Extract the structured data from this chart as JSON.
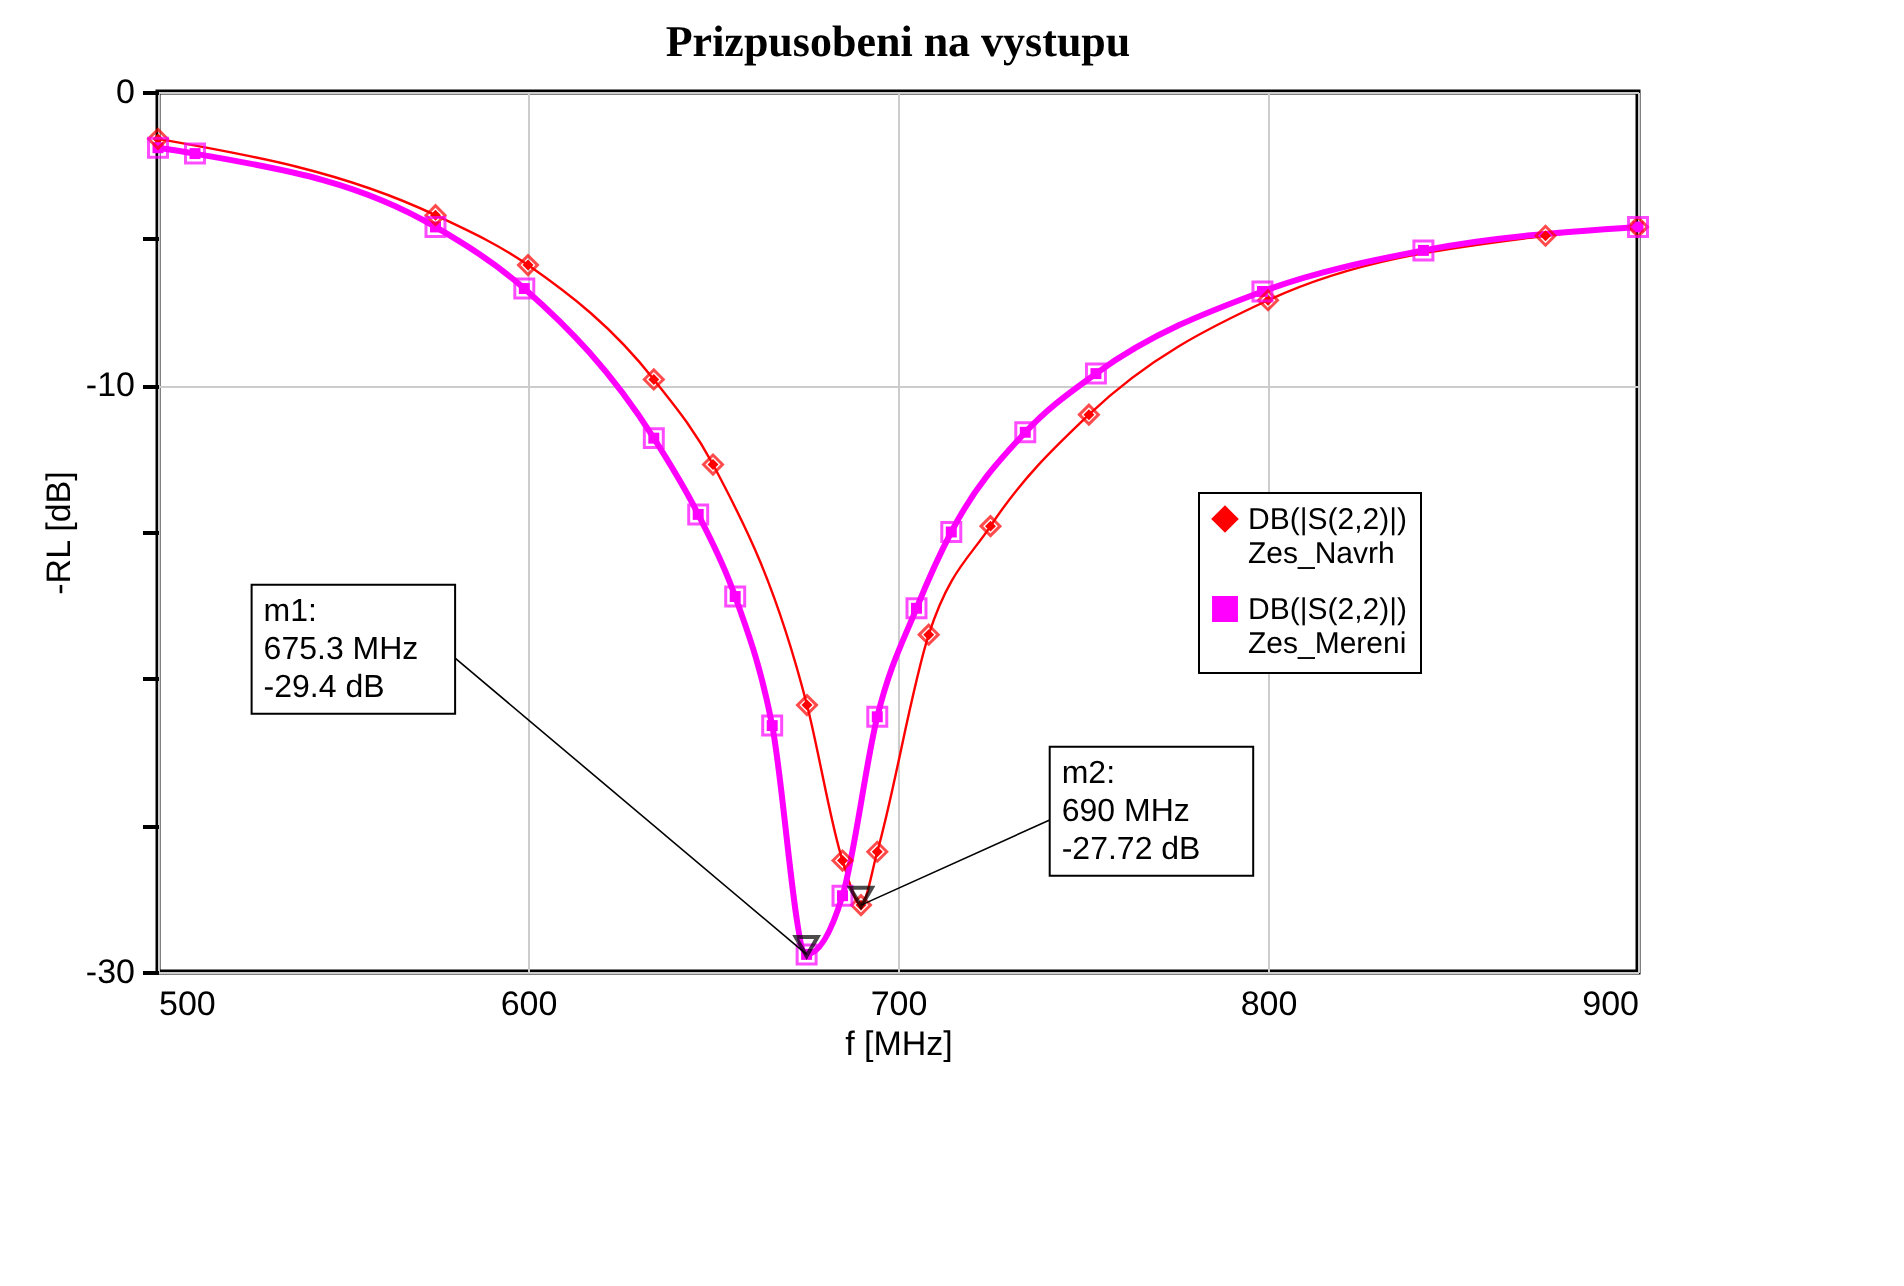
{
  "chart_data": {
    "type": "line",
    "title": "Prizpusobeni na vystupu",
    "xlabel": "f [MHz]",
    "ylabel": "-RL [dB]",
    "series": [
      {
        "name": "DB(|S(2,2)|)\nZes_Navrh",
        "color": "#ff0000",
        "marker": "diamond",
        "x": [
          500,
          575,
          600,
          634,
          650,
          675.4,
          685,
          690,
          694.4,
          708.3,
          725,
          751.6,
          800,
          875,
          900
        ],
        "values": [
          -1.6,
          -4.2,
          -5.9,
          -9.8,
          -12.7,
          -20.9,
          -26.2,
          -27.72,
          -25.9,
          -18.5,
          -14.8,
          -11.0,
          -7.1,
          -4.9,
          -4.6
        ]
      },
      {
        "name": "DB(|S(2,2)|)\nZes_Mereni",
        "color": "#ff00ff",
        "marker": "square",
        "x": [
          500,
          510,
          575,
          599,
          634,
          646,
          656,
          666,
          675.3,
          685,
          694.4,
          705,
          714.4,
          734.4,
          753.5,
          798.5,
          842,
          900
        ],
        "values": [
          -1.9,
          -2.1,
          -4.6,
          -6.7,
          -11.8,
          -14.4,
          -17.2,
          -21.6,
          -29.4,
          -27.4,
          -21.3,
          -17.6,
          -15.0,
          -11.6,
          -9.6,
          -6.8,
          -5.4,
          -4.6
        ]
      }
    ],
    "xlim": [
      500,
      900
    ],
    "xticks": [
      500,
      600,
      700,
      800,
      900
    ],
    "ylim": [
      -30,
      0
    ],
    "yticks": [
      0,
      {
        "value": -5,
        "label": null
      },
      -10,
      {
        "value": -15,
        "label": null
      },
      {
        "value": -20,
        "label": null
      },
      {
        "value": -25,
        "label": null
      },
      -30
    ],
    "grid": true,
    "legend": "right",
    "line_style": "solid",
    "annotations": [
      {
        "text": "m1:\n675.3 MHz\n-29.4 dB",
        "x": 675.3,
        "y": -29.4
      },
      {
        "text": "m2:\n690 MHz\n-27.72 dB",
        "x": 690,
        "y": -27.72
      }
    ]
  }
}
